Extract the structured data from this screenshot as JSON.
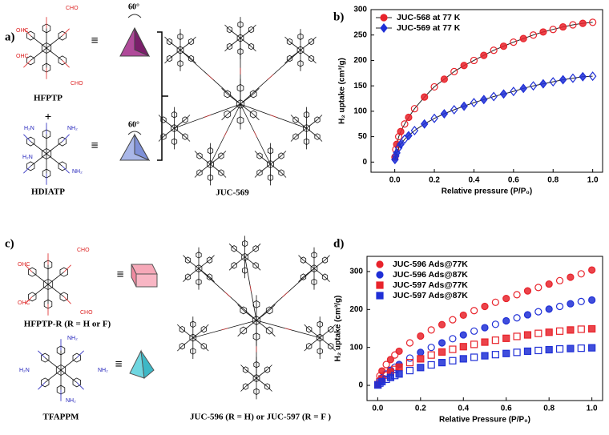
{
  "panels": {
    "a": {
      "letter": "a)",
      "monomer1": "HFPTP",
      "plus": "+",
      "monomer2": "HDIATP",
      "product": "JUC-569",
      "equiv1": "≡",
      "equiv2": "≡",
      "angle1": "60°",
      "angle2": "60°",
      "subs": [
        "OHC",
        "CHO",
        "OHC",
        "CHO",
        "H₂N",
        "NH₂",
        "H₂N",
        "NH₂"
      ]
    },
    "b_letter": "b)",
    "c": {
      "letter": "c)",
      "monomer1": "HFPTP-R (R = H or F)",
      "monomer2": "TFAPPM",
      "product": "JUC-596 (R = H) or JUC-597 (R = F )",
      "equiv1": "≡",
      "equiv2": "≡",
      "subs": [
        "OHC",
        "CHO",
        "OHC",
        "CHO",
        "NH₂",
        "H₂N",
        "NH₂",
        "NH₂"
      ]
    },
    "d_letter": "d)"
  },
  "chart_data": [
    {
      "type": "scatter",
      "xlabel": "Relative pressure (P/P₀)",
      "ylabel": "H₂ uptake (cm³/g)",
      "xlim": [
        -0.12,
        1.05
      ],
      "ylim": [
        -20,
        300
      ],
      "xticks": [
        {
          "value": 0,
          "label": "0.0"
        },
        0.2,
        0.4,
        0.6,
        0.8,
        {
          "value": 1,
          "label": "1.0"
        }
      ],
      "yticks": [
        0,
        50,
        100,
        150,
        200,
        250,
        300
      ],
      "frame": true,
      "connect": true,
      "legend": "upper left",
      "x": [
        0.001,
        0.005,
        0.01,
        0.02,
        0.03,
        0.05,
        0.07,
        0.1,
        0.15,
        0.2,
        0.25,
        0.3,
        0.35,
        0.4,
        0.45,
        0.5,
        0.55,
        0.6,
        0.65,
        0.7,
        0.75,
        0.8,
        0.85,
        0.9,
        0.95,
        1.0
      ],
      "series": [
        {
          "name": "JUC-568 at 77 K",
          "color": "#e8232b",
          "marker": "circle",
          "values": [
            10,
            25,
            35,
            50,
            60,
            75,
            88,
            105,
            128,
            148,
            163,
            178,
            190,
            200,
            210,
            220,
            228,
            236,
            243,
            250,
            256,
            261,
            266,
            270,
            273,
            275
          ]
        },
        {
          "name": "JUC-569 at 77 K",
          "color": "#1f2fd6",
          "marker": "diamond",
          "values": [
            5,
            12,
            18,
            28,
            35,
            45,
            52,
            62,
            75,
            86,
            95,
            103,
            110,
            117,
            123,
            129,
            134,
            139,
            145,
            150,
            154,
            158,
            162,
            165,
            168,
            169
          ]
        }
      ]
    },
    {
      "type": "scatter",
      "xlabel": "Relative Pressure (P/P₀)",
      "ylabel": "H₂ uptake (cm³/g)",
      "xlim": [
        -0.05,
        1.05
      ],
      "ylim": [
        -40,
        340
      ],
      "xticks": [
        {
          "value": 0,
          "label": "0.0"
        },
        0.2,
        0.4,
        0.6,
        0.8,
        {
          "value": 1,
          "label": "1.0"
        }
      ],
      "yticks": [
        0,
        100,
        200,
        300
      ],
      "frame": true,
      "connect": false,
      "legend": "upper left",
      "x": [
        0.001,
        0.01,
        0.02,
        0.04,
        0.06,
        0.08,
        0.1,
        0.15,
        0.2,
        0.25,
        0.3,
        0.35,
        0.4,
        0.45,
        0.5,
        0.55,
        0.6,
        0.65,
        0.7,
        0.75,
        0.8,
        0.85,
        0.9,
        0.95,
        1.0
      ],
      "series": [
        {
          "name": "JUC-596 Ads@77K",
          "color": "#e8232b",
          "marker": "circle",
          "values": [
            3,
            25,
            38,
            55,
            68,
            80,
            90,
            112,
            130,
            146,
            160,
            173,
            185,
            197,
            208,
            219,
            229,
            239,
            249,
            258,
            267,
            276,
            285,
            294,
            304
          ]
        },
        {
          "name": "JUC-596 Ads@87K",
          "color": "#1f2fd6",
          "marker": "circle",
          "values": [
            2,
            12,
            20,
            30,
            40,
            48,
            55,
            72,
            87,
            100,
            112,
            123,
            133,
            143,
            152,
            161,
            170,
            178,
            186,
            194,
            201,
            208,
            215,
            221,
            225
          ]
        },
        {
          "name": "JUC-597 Ads@77K",
          "color": "#e8232b",
          "marker": "square",
          "values": [
            2,
            10,
            17,
            27,
            35,
            42,
            48,
            60,
            70,
            80,
            88,
            95,
            102,
            108,
            114,
            119,
            124,
            129,
            133,
            137,
            140,
            143,
            146,
            148,
            149
          ]
        },
        {
          "name": "JUC-597 Ads@87K",
          "color": "#1f2fd6",
          "marker": "square",
          "values": [
            1,
            6,
            10,
            16,
            21,
            26,
            30,
            39,
            47,
            54,
            60,
            65,
            70,
            74,
            78,
            81,
            84,
            87,
            90,
            92,
            94,
            96,
            97,
            98,
            99
          ]
        }
      ]
    }
  ]
}
